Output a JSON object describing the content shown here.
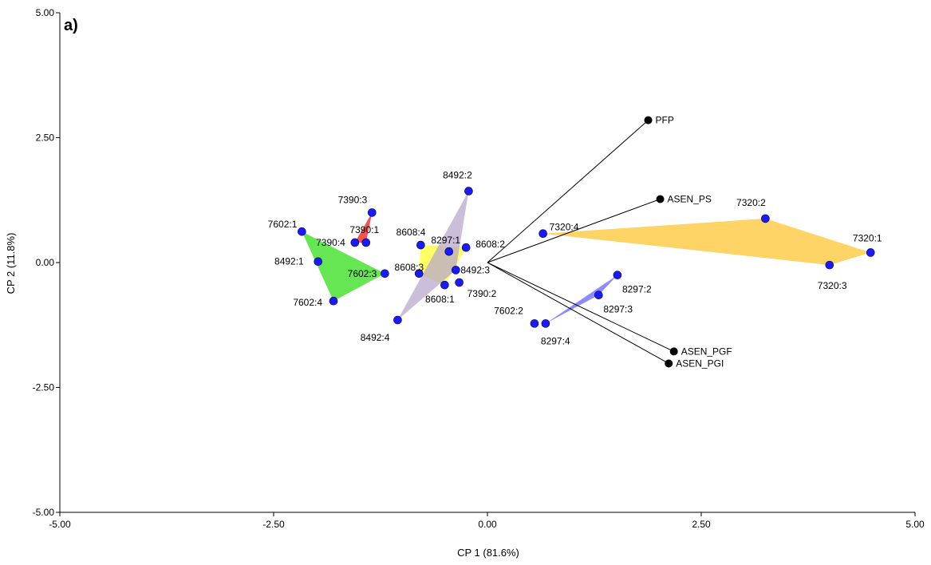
{
  "chart_data": {
    "type": "scatter",
    "panel_label": "a)",
    "xlabel": "CP 1 (81.6%)",
    "ylabel": "CP 2 (11.8%)",
    "xlim": [
      -5,
      5
    ],
    "ylim": [
      -5,
      5
    ],
    "x_ticks": [
      -5,
      -2.5,
      0,
      2.5,
      5
    ],
    "x_tick_labels": [
      "-5.00",
      "-2.50",
      "0.00",
      "2.50",
      "5.00"
    ],
    "y_ticks": [
      -5,
      -2.5,
      0,
      2.5,
      5
    ],
    "y_tick_labels": [
      "-5.00",
      "-2.50",
      "0.00",
      "2.50",
      "5.00"
    ],
    "grid": false,
    "point_color": "#1a1aff",
    "vector_color": "#000000",
    "points": [
      {
        "label": "7602:1",
        "x": -2.17,
        "y": 0.62
      },
      {
        "label": "7390:3",
        "x": -1.35,
        "y": 1.0
      },
      {
        "label": "7390:1",
        "x": -1.42,
        "y": 0.4
      },
      {
        "label": "7390:4",
        "x": -1.55,
        "y": 0.4
      },
      {
        "label": "8492:1",
        "x": -1.98,
        "y": 0.02
      },
      {
        "label": "7602:3",
        "x": -1.2,
        "y": -0.22
      },
      {
        "label": "7602:4",
        "x": -1.8,
        "y": -0.77
      },
      {
        "label": "8492:2",
        "x": -0.22,
        "y": 1.43
      },
      {
        "label": "8608:4",
        "x": -0.78,
        "y": 0.35
      },
      {
        "label": "8297:1",
        "x": -0.45,
        "y": 0.22
      },
      {
        "label": "8608:2",
        "x": -0.25,
        "y": 0.3
      },
      {
        "label": "8608:3",
        "x": -0.8,
        "y": -0.22
      },
      {
        "label": "8492:3",
        "x": -0.37,
        "y": -0.15
      },
      {
        "label": "7390:2",
        "x": -0.33,
        "y": -0.4
      },
      {
        "label": "8608:1",
        "x": -0.5,
        "y": -0.45
      },
      {
        "label": "8492:4",
        "x": -1.05,
        "y": -1.15
      },
      {
        "label": "7320:4",
        "x": 0.65,
        "y": 0.58
      },
      {
        "label": "7320:2",
        "x": 3.25,
        "y": 0.88
      },
      {
        "label": "7320:1",
        "x": 4.48,
        "y": 0.2
      },
      {
        "label": "7320:3",
        "x": 4.0,
        "y": -0.05
      },
      {
        "label": "8297:2",
        "x": 1.52,
        "y": -0.25
      },
      {
        "label": "8297:3",
        "x": 1.3,
        "y": -0.65
      },
      {
        "label": "7602:2",
        "x": 0.55,
        "y": -1.22
      },
      {
        "label": "8297:4",
        "x": 0.68,
        "y": -1.22
      }
    ],
    "vectors": [
      {
        "label": "PFP",
        "x": 1.88,
        "y": 2.85
      },
      {
        "label": "ASEN_PS",
        "x": 2.02,
        "y": 1.27
      },
      {
        "label": "ASEN_PGF",
        "x": 2.18,
        "y": -1.78
      },
      {
        "label": "ASEN_PGI",
        "x": 2.12,
        "y": -2.02
      }
    ],
    "groups": [
      {
        "color": "#33dd1a",
        "points": [
          "7602:1",
          "7602:4",
          "7602:3"
        ]
      },
      {
        "color": "#ee1a1a",
        "points": [
          "7390:3",
          "7390:4",
          "7390:1"
        ]
      },
      {
        "color": "#ffff33",
        "points": [
          "8608:4",
          "8608:2",
          "8608:1",
          "8608:3"
        ]
      },
      {
        "color": "#b8a8cc",
        "points": [
          "8492:2",
          "8492:3",
          "8492:4"
        ]
      },
      {
        "color": "#ffc633",
        "points": [
          "7320:4",
          "7320:2",
          "7320:1",
          "7320:3"
        ]
      },
      {
        "color": "#6666ff",
        "points": [
          "8297:2",
          "8297:4",
          "8297:3"
        ]
      }
    ]
  }
}
